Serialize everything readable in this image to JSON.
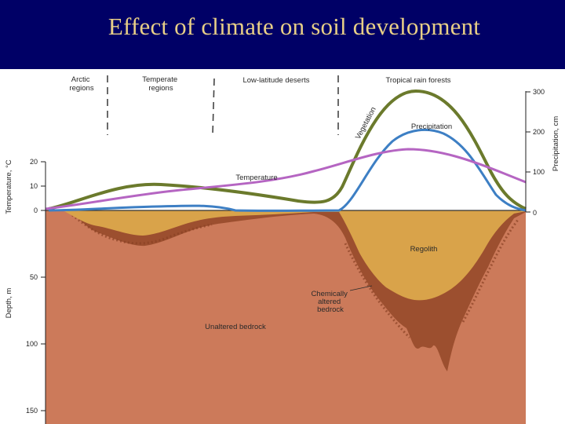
{
  "slide": {
    "title": "Effect of climate on soil development"
  },
  "colors": {
    "background": "#000066",
    "title_text": "#e8cf87",
    "vegetation": "#6b7a2c",
    "precipitation": "#3d7fc4",
    "temperature": "#b565c2",
    "regolith": "#d9a34a",
    "chemically_altered_bedrock": "#9c4f2f",
    "unaltered_bedrock": "#cc7a5a"
  },
  "regions": [
    {
      "id": "arctic",
      "label_lines": [
        "Arctic",
        "regions"
      ]
    },
    {
      "id": "temperate",
      "label_lines": [
        "Temperate",
        "regions"
      ]
    },
    {
      "id": "deserts",
      "label_lines": [
        "Low-latitude deserts"
      ]
    },
    {
      "id": "tropical",
      "label_lines": [
        "Tropical rain forests"
      ]
    }
  ],
  "curves": {
    "vegetation": "Vegetation",
    "precipitation": "Precipitation",
    "temperature": "Temperature"
  },
  "layers": {
    "regolith": "Regolith",
    "chemically_altered": [
      "Chemically",
      "altered",
      "bedrock"
    ],
    "unaltered": "Unaltered bedrock"
  },
  "axes": {
    "temperature": {
      "title": "Temperature, °C",
      "ticks": [
        "20",
        "10",
        "0"
      ]
    },
    "precipitation": {
      "title": "Precipitation, cm",
      "ticks": [
        "300",
        "200",
        "100",
        "0"
      ]
    },
    "depth": {
      "title": "Depth, m",
      "ticks": [
        "50",
        "100",
        "150"
      ]
    }
  }
}
